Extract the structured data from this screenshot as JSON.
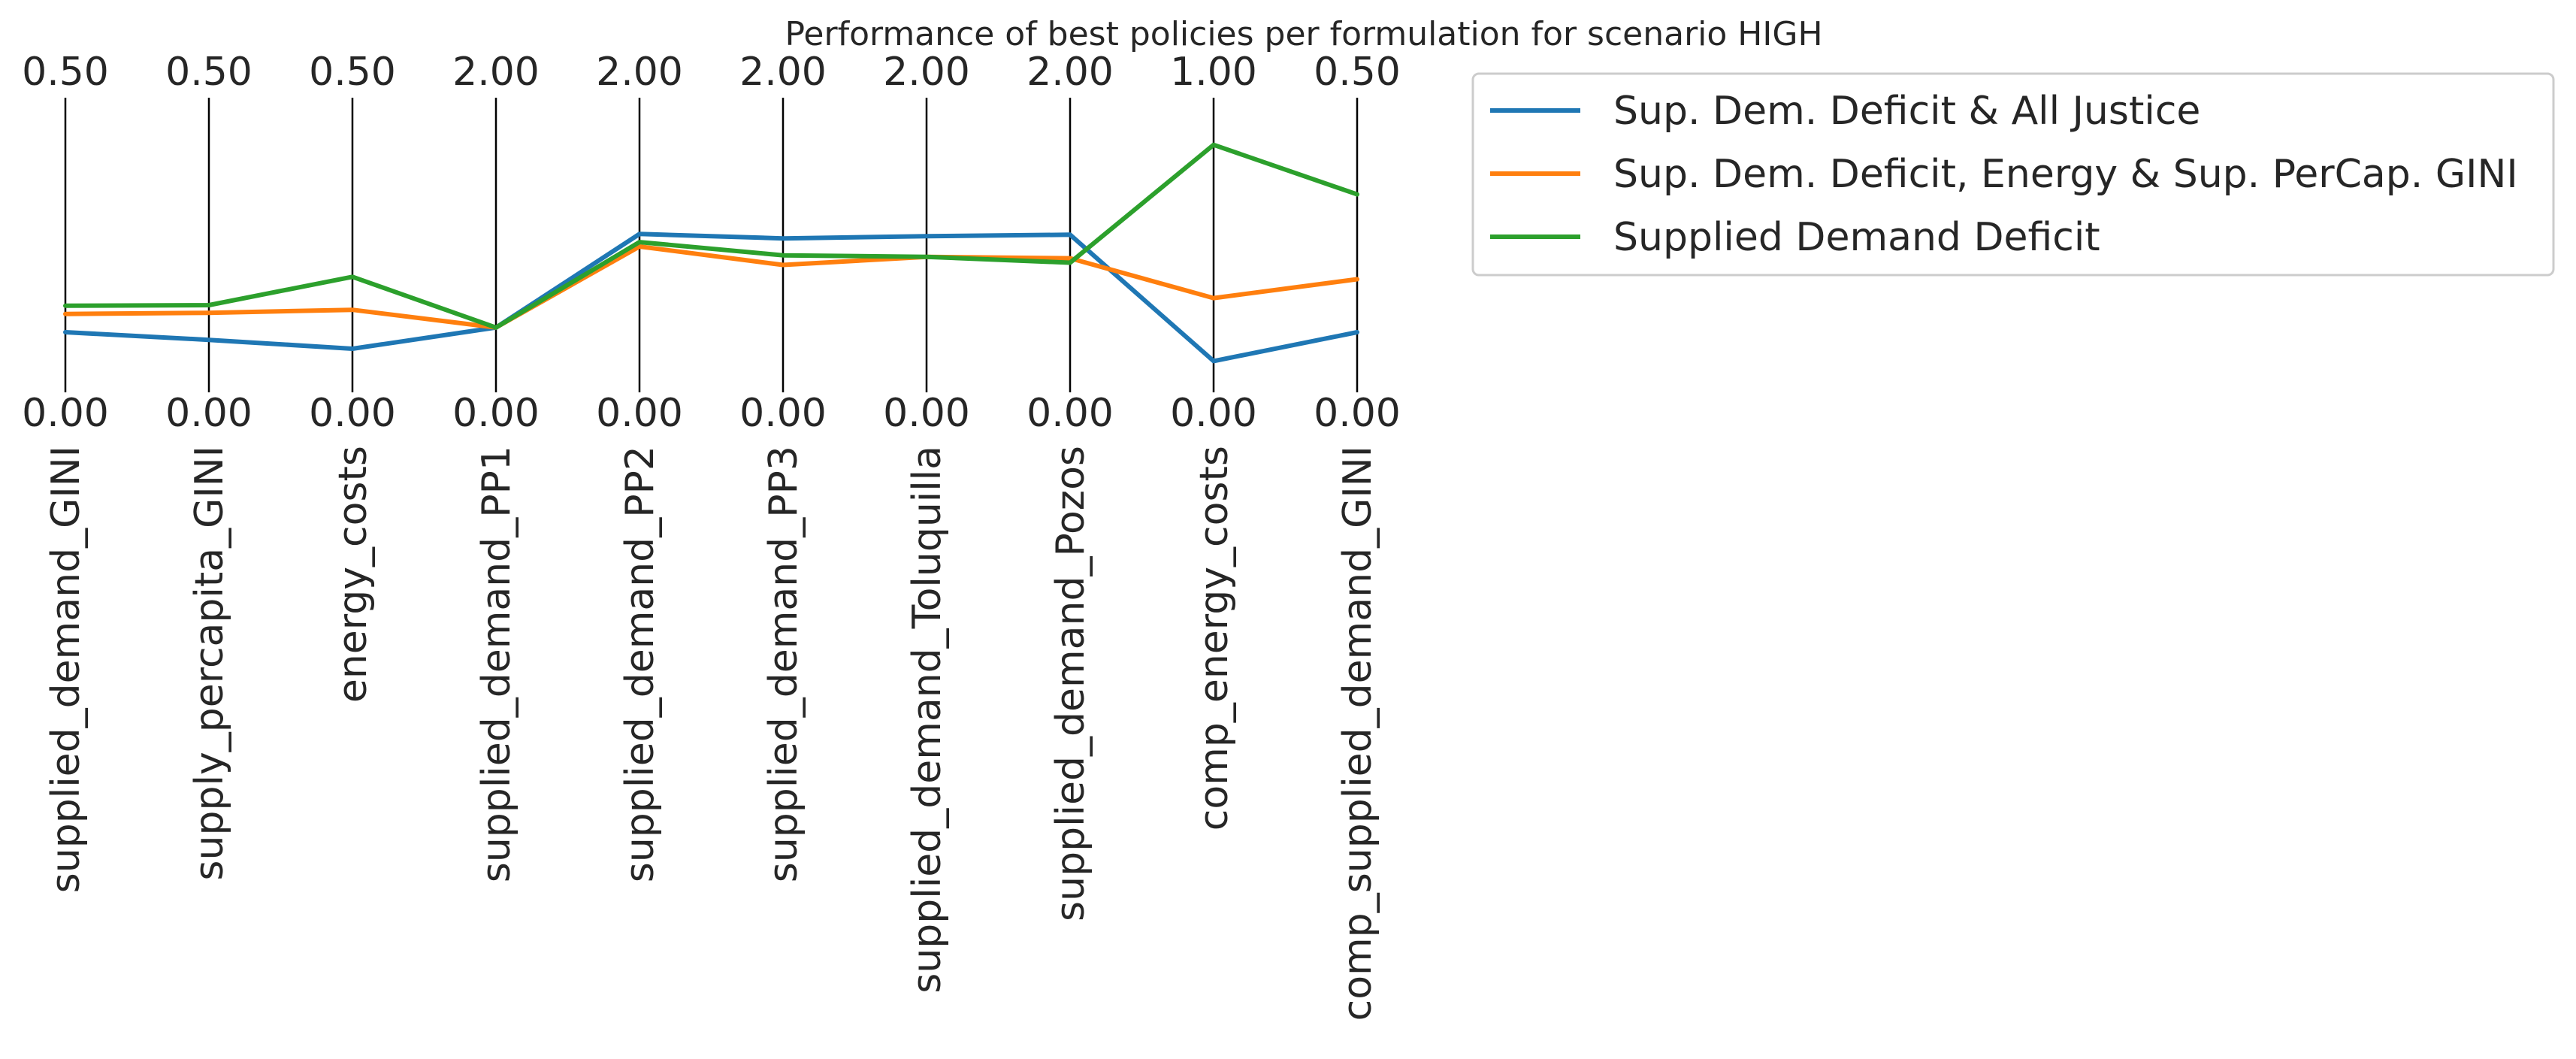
{
  "chart_data": {
    "type": "parallel_coordinates",
    "title": "Performance of best policies per formulation for scenario HIGH",
    "axes": [
      {
        "name": "supplied_demand_GINI",
        "min_label": "0.00",
        "max_label": "0.50",
        "min": 0,
        "max": 0.5
      },
      {
        "name": "supply_percapita_GINI",
        "min_label": "0.00",
        "max_label": "0.50",
        "min": 0,
        "max": 0.5
      },
      {
        "name": "energy_costs",
        "min_label": "0.00",
        "max_label": "0.50",
        "min": 0,
        "max": 0.5
      },
      {
        "name": "supplied_demand_PP1",
        "min_label": "0.00",
        "max_label": "2.00",
        "min": 0,
        "max": 2.0
      },
      {
        "name": "supplied_demand_PP2",
        "min_label": "0.00",
        "max_label": "2.00",
        "min": 0,
        "max": 2.0
      },
      {
        "name": "supplied_demand_PP3",
        "min_label": "0.00",
        "max_label": "2.00",
        "min": 0,
        "max": 2.0
      },
      {
        "name": "supplied_demand_Toluquilla",
        "min_label": "0.00",
        "max_label": "2.00",
        "min": 0,
        "max": 2.0
      },
      {
        "name": "supplied_demand_Pozos",
        "min_label": "0.00",
        "max_label": "2.00",
        "min": 0,
        "max": 2.0
      },
      {
        "name": "comp_energy_costs",
        "min_label": "0.00",
        "max_label": "1.00",
        "min": 0,
        "max": 1.0
      },
      {
        "name": "comp_supplied_demand_GINI",
        "min_label": "0.00",
        "max_label": "0.50",
        "min": 0,
        "max": 0.5
      }
    ],
    "series": [
      {
        "name": "Sup. Dem. Deficit & All Justice",
        "color": "#1f77b4",
        "values": [
          0.102,
          0.089,
          0.074,
          0.44,
          1.075,
          1.045,
          1.06,
          1.07,
          0.106,
          0.102
        ]
      },
      {
        "name": "Sup. Dem. Deficit, Energy & Sup. PerCap. GINI",
        "color": "#ff7f0e",
        "values": [
          0.133,
          0.135,
          0.14,
          0.44,
          0.99,
          0.865,
          0.92,
          0.91,
          0.32,
          0.192
        ]
      },
      {
        "name": "Supplied Demand Deficit",
        "color": "#2ca02c",
        "values": [
          0.147,
          0.148,
          0.196,
          0.44,
          1.02,
          0.93,
          0.92,
          0.88,
          0.84,
          0.336
        ]
      }
    ],
    "legend_position": "upper right, outside plot"
  }
}
